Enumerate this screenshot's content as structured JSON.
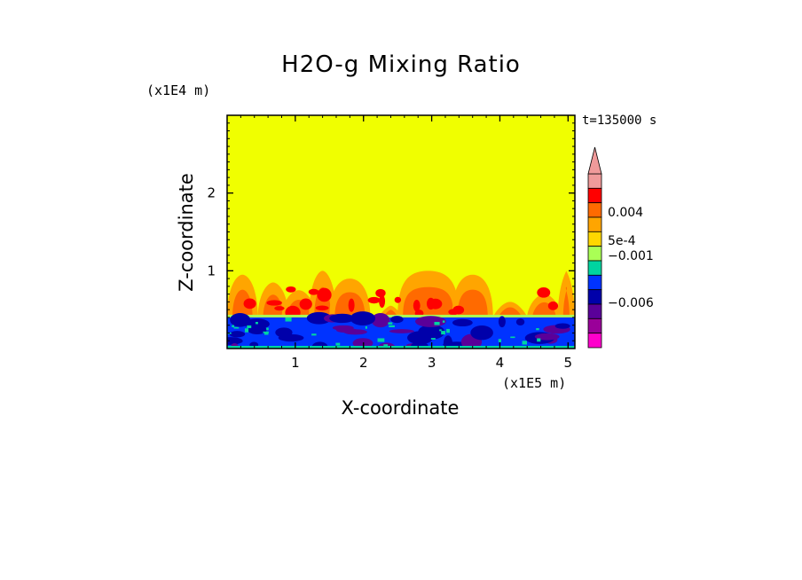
{
  "chart_data": {
    "type": "heatmap",
    "title": "H2O-g Mixing Ratio",
    "xlabel": "X-coordinate",
    "ylabel": "Z-coordinate",
    "x_unit_label": "(x1E5 m)",
    "y_unit_label": "(x1E4 m)",
    "time_label": "t=135000 s",
    "xlim": [
      0,
      5.1
    ],
    "ylim": [
      0,
      3.0
    ],
    "x_ticks": [
      1,
      2,
      3,
      4,
      5
    ],
    "y_ticks": [
      1,
      2
    ],
    "colorbar": {
      "labels": [
        {
          "value": 0.004,
          "text": "0.004"
        },
        {
          "value": 0.0005,
          "text": "5e-4"
        },
        {
          "value": -0.001,
          "text": "−0.001"
        },
        {
          "value": -0.006,
          "text": "−0.006"
        }
      ],
      "colors_top_to_bottom": [
        "#f09a9a",
        "#ff0000",
        "#ff6a00",
        "#ffa500",
        "#ffd700",
        "#aaff55",
        "#00d4a0",
        "#0033ff",
        "#0000aa",
        "#5a0099",
        "#9a0099",
        "#ff00cc"
      ],
      "arrow_color": "#f09a9a"
    },
    "fields": {
      "background_level": "#f0ff00",
      "surface_layer_top": 0.4,
      "plume_layer_top": 1.0
    }
  }
}
